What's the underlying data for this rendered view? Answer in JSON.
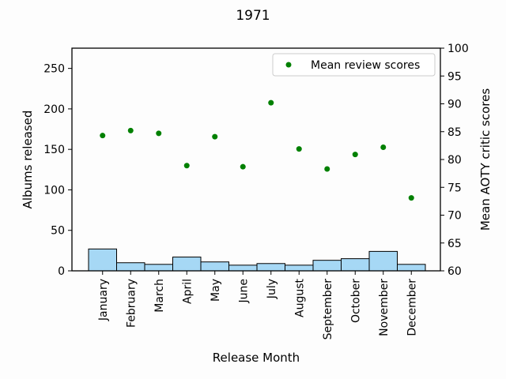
{
  "chart_data": {
    "type": "bar",
    "title": "1971",
    "xlabel": "Release Month",
    "ylabel": "Albums released",
    "y2label": "Mean AOTY critic scores",
    "categories": [
      "January",
      "February",
      "March",
      "April",
      "May",
      "June",
      "July",
      "August",
      "September",
      "October",
      "November",
      "December"
    ],
    "ylim": [
      0,
      275
    ],
    "y2lim": [
      60,
      100
    ],
    "yticks": [
      0,
      50,
      100,
      150,
      200,
      250
    ],
    "y2ticks": [
      60,
      65,
      70,
      75,
      80,
      85,
      90,
      95,
      100
    ],
    "grid": false,
    "legend_position": "top-right",
    "bar_color": "#a6d8f5",
    "marker_color": "#008000",
    "series": [
      {
        "values": [
          27,
          10,
          8,
          17,
          11,
          7,
          9,
          7,
          13,
          15,
          24,
          8
        ]
      },
      {
        "name": "Mean review scores",
        "values": [
          84.3,
          85.2,
          84.7,
          78.9,
          84.1,
          78.7,
          90.2,
          81.9,
          78.3,
          80.9,
          82.2,
          73.1
        ]
      }
    ]
  }
}
